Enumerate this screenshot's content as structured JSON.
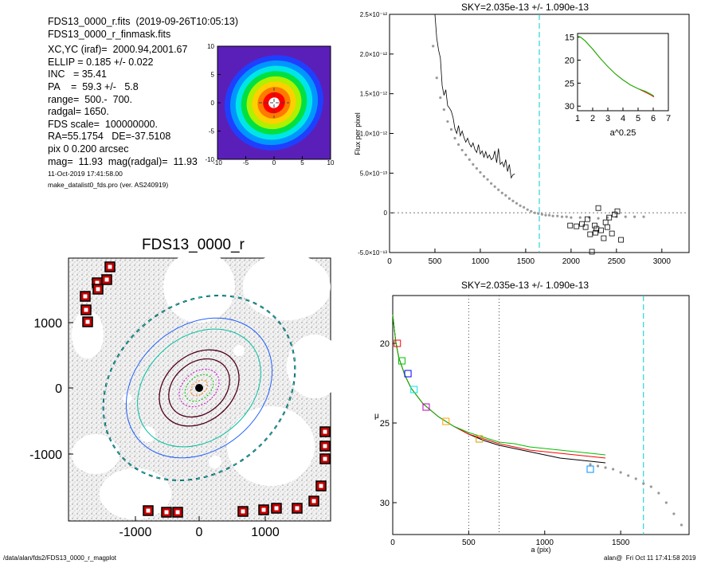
{
  "header": {
    "lines": [
      "FDS13_0000_r.fits  (2019-09-26T10:05:13)",
      "FDS13_0000_r_finmask.fits",
      "XC,YC (iraf)=  2000.94,2001.67",
      "ELLIP = 0.185 +/- 0.022",
      "INC   = 35.41",
      "PA    =  59.3 +/-   5.8",
      "range=  500.-  700.",
      "radgal= 1650.",
      "FDS scale=  100000000.",
      "RA=55.1754   DE=-37.5108",
      "pix 0 0.200 arcsec",
      "mag=  11.93  mag(radgal)=  11.93"
    ],
    "small_lines": [
      "11-Oct-2019 17:41:58.00",
      "make_datalist0_fds.pro (ver. AS240919)"
    ]
  },
  "contour_map": {
    "x_ticks": [
      "-10",
      "-5",
      "0",
      "5",
      "10"
    ],
    "y_ticks": [
      "10",
      "5",
      "0",
      "-5",
      "-10"
    ],
    "colors": [
      "#5a1fb8",
      "#1f3fff",
      "#0096ff",
      "#00e6e6",
      "#00e040",
      "#b0f000",
      "#ffd000",
      "#ff7a00",
      "#ff0000",
      "#ffffff"
    ]
  },
  "image_panel": {
    "title": "FDS13_0000_r",
    "x_ticks": [
      "-1000",
      "0",
      "1000"
    ],
    "y_ticks": [
      "1000",
      "0",
      "-1000"
    ]
  },
  "chart_data": [
    {
      "type": "scatter",
      "title": "SKY=2.035e-13 +/- 1.090e-13",
      "ylabel": "Flux per pixel",
      "xlabel": "",
      "xlim": [
        0,
        3300
      ],
      "ylim": [
        -5e-13,
        2.5e-12
      ],
      "x_ticks": [
        "0",
        "500",
        "1000",
        "1500",
        "2000",
        "2500",
        "3000"
      ],
      "y_ticks": [
        "2.5×10⁻¹²",
        "2.0×10⁻¹²",
        "1.5×10⁻¹²",
        "1.0×10⁻¹²",
        "5.0×10⁻¹³",
        "0",
        "-5.0×10⁻¹³"
      ],
      "sky_radius": 1650,
      "profile_line": {
        "x": [
          500,
          520,
          540,
          560,
          580,
          600,
          620,
          640,
          660,
          680,
          700,
          720,
          740,
          760,
          780,
          800,
          820,
          840,
          860,
          880,
          900,
          920,
          940,
          960,
          980,
          1000,
          1020,
          1040,
          1060,
          1080,
          1100,
          1120,
          1140,
          1160,
          1180,
          1200,
          1220,
          1240,
          1260,
          1280,
          1300,
          1320,
          1340,
          1360,
          1380
        ],
        "y": [
          2.5e-12,
          2.2e-12,
          2.05e-12,
          1.95e-12,
          1.6e-12,
          1.48e-12,
          1.55e-12,
          1.35e-12,
          1.32e-12,
          1.28e-12,
          1.2e-12,
          1.06e-12,
          1e-12,
          1.1e-12,
          9.7e-13,
          1.03e-12,
          9.5e-13,
          8.9e-13,
          9.4e-13,
          8.7e-13,
          8.3e-13,
          8.8e-13,
          8e-13,
          7.6e-13,
          8.6e-13,
          7.4e-13,
          7.8e-13,
          7e-13,
          7.7e-13,
          6.9e-13,
          7.3e-13,
          6.7e-13,
          6.9e-13,
          7.8e-13,
          6.3e-13,
          8.1e-13,
          6.1e-13,
          6.4e-13,
          5.8e-13,
          6.7e-13,
          5.2e-13,
          6.1e-13,
          4.4e-13,
          4.8e-13,
          4.9e-13
        ]
      },
      "profile_points": {
        "x": [
          480,
          520,
          560,
          600,
          640,
          680,
          720,
          760,
          800,
          840,
          880,
          920,
          960,
          1000,
          1040,
          1080,
          1120,
          1160,
          1200,
          1240,
          1280,
          1320,
          1360,
          1400,
          1440,
          1480,
          1520,
          1560,
          1600,
          1640,
          1680,
          1720,
          1760,
          1800,
          1850,
          1900,
          1950,
          2000,
          2100,
          2200,
          2300,
          2400,
          2500,
          2600,
          2700,
          2800
        ],
        "y": [
          2.1e-12,
          1.7e-12,
          1.45e-12,
          1.3e-12,
          1.15e-12,
          1.05e-12,
          9.4e-13,
          8.6e-13,
          7.9e-13,
          7.3e-13,
          6.7e-13,
          6.1e-13,
          5.6e-13,
          5.1e-13,
          4.6e-13,
          4.2e-13,
          3.7e-13,
          3.3e-13,
          2.9e-13,
          2.5e-13,
          2.2e-13,
          1.8e-13,
          1.5e-13,
          1.2e-13,
          9e-14,
          7e-14,
          4e-14,
          2e-14,
          0.0,
          -1e-14,
          -2e-14,
          -3e-14,
          -3e-14,
          -4e-14,
          -4e-14,
          -5e-14,
          -5e-14,
          -6e-14,
          -6e-14,
          -6e-14,
          -7e-14,
          -6e-14,
          -5e-14,
          -5e-14,
          -5e-14,
          -5e-14
        ]
      },
      "sky_boxes": {
        "x": [
          1990,
          2060,
          2120,
          2160,
          2180,
          2210,
          2230,
          2260,
          2280,
          2300,
          2330,
          2360,
          2380,
          2400,
          2420,
          2450,
          2480,
          2510,
          2550,
          2270
        ],
        "y": [
          -1.6e-13,
          -1.7e-13,
          -1.4e-13,
          -1.8e-13,
          -8e-14,
          -2.7e-13,
          -4.9e-13,
          -1.6e-13,
          -2e-13,
          6e-14,
          -2.2e-13,
          -3.2e-13,
          -1.2e-13,
          -1.8e-13,
          -6e-14,
          -2.6e-13,
          -2e-14,
          2e-14,
          -3.4e-13,
          -2.5e-13
        ]
      }
    },
    {
      "type": "line",
      "title": "",
      "xlabel": "a^0.25",
      "ylabel": "",
      "xlim": [
        1,
        7
      ],
      "ylim": [
        31,
        14.2
      ],
      "x_ticks": [
        "1",
        "2",
        "3",
        "4",
        "5",
        "6",
        "7"
      ],
      "y_ticks": [
        "15",
        "20",
        "25",
        "30"
      ],
      "series": [
        {
          "color": "#ff0000",
          "x": [
            1.0,
            1.2,
            1.5,
            2.0,
            2.5,
            3.0,
            3.5,
            4.0,
            4.5,
            5.0,
            5.5,
            5.8,
            6.05
          ],
          "y": [
            14.8,
            15.0,
            15.8,
            17.6,
            19.6,
            21.4,
            23.0,
            24.3,
            25.4,
            26.2,
            27.0,
            27.5,
            28.0
          ]
        },
        {
          "color": "#00c000",
          "x": [
            1.0,
            1.2,
            1.5,
            2.0,
            2.5,
            3.0,
            3.5,
            4.0,
            4.5,
            5.0,
            5.5,
            5.8,
            6.05
          ],
          "y": [
            14.8,
            15.0,
            15.8,
            17.6,
            19.6,
            21.4,
            23.0,
            24.3,
            25.4,
            26.2,
            26.8,
            27.3,
            27.8
          ]
        }
      ]
    },
    {
      "type": "line",
      "title": "SKY=2.035e-13 +/- 1.090e-13",
      "xlabel": "a (pix)",
      "ylabel": "μ",
      "xlim": [
        0,
        1950
      ],
      "ylim": [
        32,
        17
      ],
      "x_ticks": [
        "0",
        "500",
        "1000",
        "1500"
      ],
      "y_ticks": [
        "20",
        "25",
        "30"
      ],
      "vlines_dotted": [
        500,
        700
      ],
      "sky_radius": 1650,
      "series": [
        {
          "color": "#000000",
          "x": [
            0,
            20,
            40,
            80,
            120,
            200,
            300,
            400,
            500,
            600,
            700,
            800,
            900,
            1000,
            1100,
            1200,
            1300,
            1400
          ],
          "y": [
            18.2,
            19.9,
            20.9,
            22.0,
            22.8,
            23.8,
            24.6,
            25.2,
            25.7,
            26.1,
            26.4,
            26.6,
            26.8,
            27.0,
            27.2,
            27.3,
            27.4,
            27.5
          ]
        },
        {
          "color": "#ff0000",
          "x": [
            0,
            20,
            40,
            80,
            120,
            200,
            300,
            400,
            500,
            600,
            700,
            800,
            900,
            1000,
            1100,
            1200,
            1300,
            1400
          ],
          "y": [
            18.2,
            19.9,
            20.9,
            22.0,
            22.8,
            23.8,
            24.6,
            25.2,
            25.7,
            26.0,
            26.3,
            26.5,
            26.7,
            26.8,
            26.9,
            27.0,
            27.1,
            27.2
          ]
        },
        {
          "color": "#00c000",
          "x": [
            0,
            20,
            40,
            80,
            120,
            200,
            300,
            400,
            500,
            600,
            700,
            800,
            900,
            1000,
            1100,
            1200,
            1300,
            1400
          ],
          "y": [
            18.2,
            19.9,
            20.9,
            22.0,
            22.8,
            23.8,
            24.6,
            25.2,
            25.6,
            25.9,
            26.2,
            26.3,
            26.5,
            26.6,
            26.7,
            26.8,
            26.9,
            27.0
          ]
        }
      ],
      "points": {
        "x": [
          1300,
          1350,
          1400,
          1450,
          1500,
          1550,
          1600,
          1650,
          1700,
          1750,
          1800,
          1850,
          1900
        ],
        "y": [
          27.6,
          27.7,
          27.8,
          27.9,
          28.1,
          28.3,
          28.5,
          28.8,
          29.0,
          29.4,
          30.0,
          30.7,
          31.4
        ]
      },
      "boxes": {
        "x": [
          30,
          60,
          100,
          140,
          220,
          350,
          570,
          1300
        ],
        "y": [
          20.0,
          21.1,
          21.9,
          22.9,
          24.0,
          24.9,
          26.0,
          27.9
        ],
        "colors": [
          "#ff0000",
          "#00c000",
          "#0000ff",
          "#00e6e6",
          "#c000c0",
          "#ffa000",
          "#d0a000",
          "#0090ff"
        ]
      }
    }
  ],
  "footer": {
    "left": "/data/alan/fds2/FDS13_0000_r_magplot",
    "right": "alan@  Fri Oct 11 17:41:58 2019"
  }
}
